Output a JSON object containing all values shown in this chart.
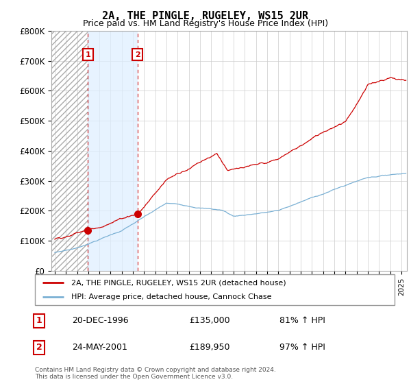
{
  "title": "2A, THE PINGLE, RUGELEY, WS15 2UR",
  "subtitle": "Price paid vs. HM Land Registry's House Price Index (HPI)",
  "ylim": [
    0,
    800000
  ],
  "yticks": [
    0,
    100000,
    200000,
    300000,
    400000,
    500000,
    600000,
    700000,
    800000
  ],
  "ytick_labels": [
    "£0",
    "£100K",
    "£200K",
    "£300K",
    "£400K",
    "£500K",
    "£600K",
    "£700K",
    "£800K"
  ],
  "xlim_start": 1993.7,
  "xlim_end": 2025.5,
  "line1_color": "#cc0000",
  "line2_color": "#7ab0d4",
  "purchase1_year": 1996.97,
  "purchase1_price": 135000,
  "purchase1_date": "20-DEC-1996",
  "purchase1_hpi": "81% ↑ HPI",
  "purchase2_year": 2001.39,
  "purchase2_price": 189950,
  "purchase2_date": "24-MAY-2001",
  "purchase2_hpi": "97% ↑ HPI",
  "legend_label1": "2A, THE PINGLE, RUGELEY, WS15 2UR (detached house)",
  "legend_label2": "HPI: Average price, detached house, Cannock Chase",
  "footnote": "Contains HM Land Registry data © Crown copyright and database right 2024.\nThis data is licensed under the Open Government Licence v3.0.",
  "background_color": "#ffffff",
  "grid_color": "#cccccc",
  "hatch_region_end": 1996.97,
  "blue_fill_start": 1996.97,
  "blue_fill_end": 2001.39
}
